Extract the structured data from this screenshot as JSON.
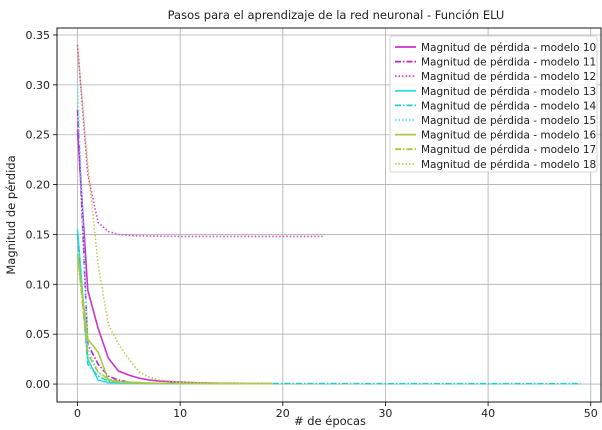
{
  "chart_data": {
    "type": "line",
    "title": "Pasos para el aprendizaje de la red neuronal - Función ELU",
    "xlabel": "# de épocas",
    "ylabel": "Magnitud de pérdida",
    "xlim": [
      -2,
      51
    ],
    "ylim": [
      -0.018,
      0.357
    ],
    "xticks": [
      "0",
      "10",
      "20",
      "30",
      "40",
      "50"
    ],
    "xtick_values": [
      0,
      10,
      20,
      30,
      40,
      50
    ],
    "yticks": [
      "0.00",
      "0.05",
      "0.10",
      "0.15",
      "0.20",
      "0.25",
      "0.30",
      "0.35"
    ],
    "ytick_values": [
      0,
      0.05,
      0.1,
      0.15,
      0.2,
      0.25,
      0.3,
      0.35
    ],
    "grid": true,
    "legend_position": "top-right",
    "series": [
      {
        "name": "Magnitud de pérdida - modelo 10",
        "color": "#cc33cc",
        "dash": "solid",
        "x": [
          0,
          1,
          2,
          3,
          4,
          5,
          6,
          7,
          8,
          9,
          10,
          11,
          12,
          13,
          14,
          15,
          16,
          17,
          18,
          19
        ],
        "y": [
          0.255,
          0.094,
          0.056,
          0.026,
          0.013,
          0.009,
          0.006,
          0.004,
          0.003,
          0.0025,
          0.002,
          0.0015,
          0.0012,
          0.001,
          0.0008,
          0.0007,
          0.0006,
          0.0005,
          0.0004,
          0.0004
        ]
      },
      {
        "name": "Magnitud de pérdida - modelo 11",
        "color": "#bb22cc",
        "dash": "dashdot",
        "x": [
          0,
          1,
          2,
          3,
          4,
          5,
          6,
          7,
          8,
          9
        ],
        "y": [
          0.275,
          0.04,
          0.02,
          0.008,
          0.004,
          0.002,
          0.001,
          0.0007,
          0.0005,
          0.0004
        ]
      },
      {
        "name": "Magnitud de pérdida - modelo 12",
        "color": "#dd44dd",
        "dash": "dotted",
        "x": [
          0,
          1,
          2,
          3,
          4,
          5,
          6,
          8,
          10,
          12,
          14,
          16,
          18,
          20,
          22,
          24
        ],
        "y": [
          0.34,
          0.21,
          0.162,
          0.153,
          0.15,
          0.149,
          0.1485,
          0.1482,
          0.148,
          0.148,
          0.148,
          0.148,
          0.148,
          0.148,
          0.148,
          0.148
        ]
      },
      {
        "name": "Magnitud de pérdida - modelo 13",
        "color": "#33dddd",
        "dash": "solid",
        "x": [
          0,
          1,
          2,
          3,
          4,
          5,
          6,
          7,
          8,
          9,
          10,
          11,
          12,
          13,
          14,
          15,
          16,
          17,
          18,
          19
        ],
        "y": [
          0.155,
          0.025,
          0.004,
          0.0015,
          0.001,
          0.0008,
          0.0006,
          0.0005,
          0.0004,
          0.0004,
          0.0003,
          0.0003,
          0.0003,
          0.0003,
          0.0003,
          0.0003,
          0.0003,
          0.0003,
          0.0003,
          0.0003
        ]
      },
      {
        "name": "Magnitud de pérdida - modelo 14",
        "color": "#22cccc",
        "dash": "dashdot",
        "x": [
          0,
          1,
          2,
          3,
          4,
          5,
          6,
          8,
          10,
          15,
          20,
          25,
          30,
          35,
          40,
          45,
          49
        ],
        "y": [
          0.15,
          0.02,
          0.008,
          0.003,
          0.002,
          0.0015,
          0.001,
          0.0008,
          0.0006,
          0.0005,
          0.0004,
          0.0004,
          0.0003,
          0.0003,
          0.0003,
          0.0003,
          0.0003
        ]
      },
      {
        "name": "Magnitud de pérdida - modelo 15",
        "color": "#55eeee",
        "dash": "dotted",
        "x": [
          0,
          1,
          2,
          3,
          4,
          5,
          6,
          7,
          8,
          9
        ],
        "y": [
          0.3,
          0.035,
          0.012,
          0.005,
          0.003,
          0.002,
          0.0015,
          0.001,
          0.0008,
          0.0006
        ]
      },
      {
        "name": "Magnitud de pérdida - modelo 16",
        "color": "#a8c84a",
        "dash": "solid",
        "x": [
          0,
          1,
          2,
          3,
          4,
          5,
          6,
          7,
          8,
          9,
          10,
          11,
          12,
          13,
          14,
          15,
          16,
          17,
          18,
          19
        ],
        "y": [
          0.13,
          0.045,
          0.032,
          0.004,
          0.002,
          0.0015,
          0.001,
          0.0008,
          0.0006,
          0.0005,
          0.0004,
          0.0004,
          0.0003,
          0.0003,
          0.0003,
          0.0003,
          0.0003,
          0.0003,
          0.0003,
          0.0003
        ]
      },
      {
        "name": "Magnitud de pérdida - modelo 17",
        "color": "#b0c830",
        "dash": "dashdot",
        "x": [
          0,
          1,
          2,
          3,
          4,
          5,
          6,
          7,
          8,
          9
        ],
        "y": [
          0.13,
          0.03,
          0.012,
          0.005,
          0.003,
          0.002,
          0.0015,
          0.001,
          0.0008,
          0.0006
        ]
      },
      {
        "name": "Magnitud de pérdida - modelo 18",
        "color": "#c0cc55",
        "dash": "dotted",
        "x": [
          0,
          1,
          2,
          3,
          4,
          5,
          6,
          7,
          8,
          9,
          10,
          12,
          14,
          16,
          18,
          19
        ],
        "y": [
          0.338,
          0.22,
          0.12,
          0.06,
          0.04,
          0.025,
          0.012,
          0.007,
          0.004,
          0.003,
          0.002,
          0.0015,
          0.001,
          0.0008,
          0.0006,
          0.0005
        ]
      }
    ]
  }
}
